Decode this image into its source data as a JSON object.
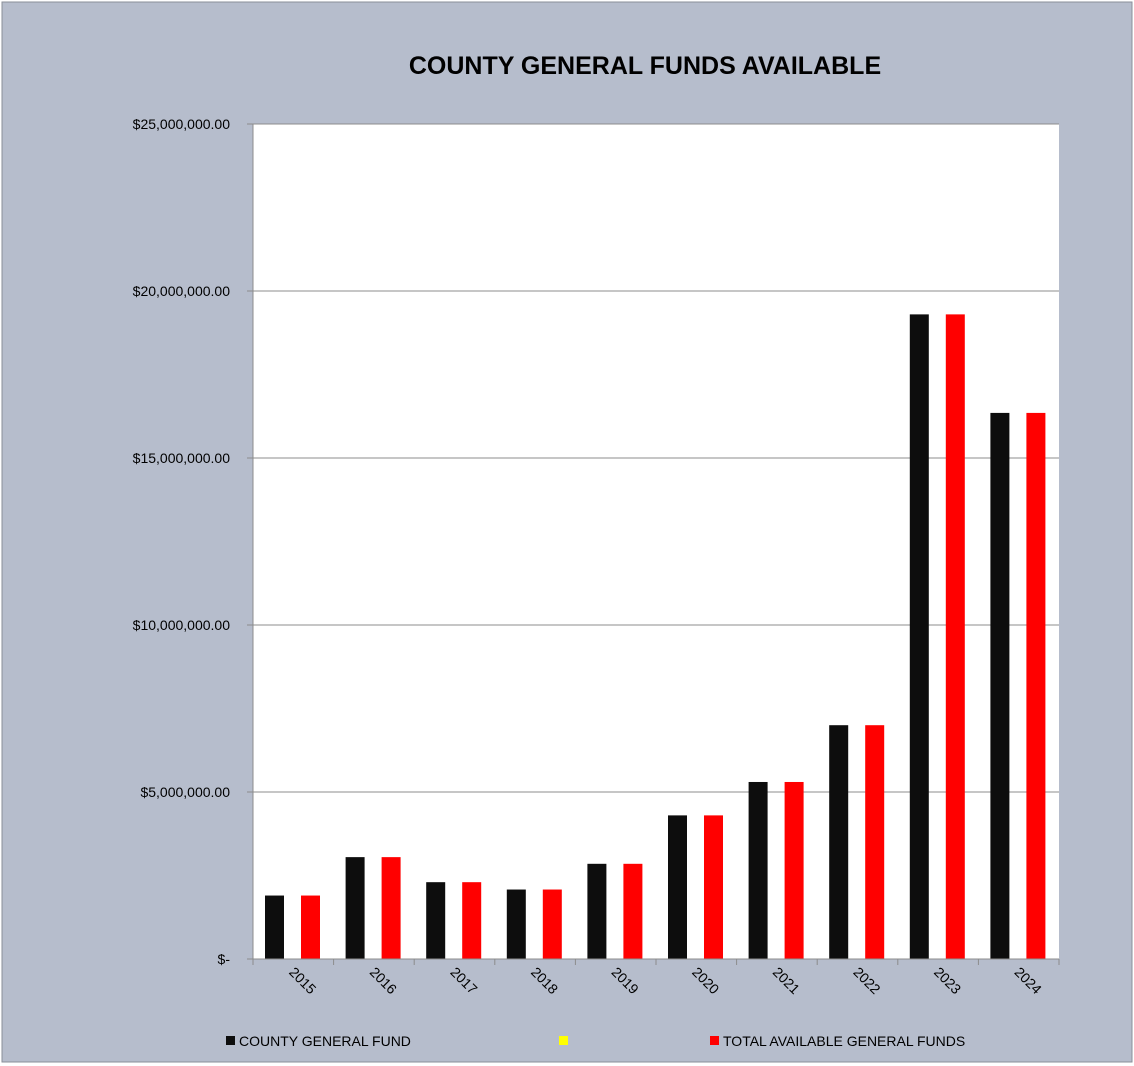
{
  "chart_data": {
    "type": "bar",
    "title": "COUNTY GENERAL FUNDS AVAILABLE",
    "xlabel": "",
    "ylabel": "",
    "categories": [
      "2015",
      "2016",
      "2017",
      "2018",
      "2019",
      "2020",
      "2021",
      "2022",
      "2023",
      "2024"
    ],
    "series": [
      {
        "name": "COUNTY GENERAL FUND",
        "color": "#0d0d0d",
        "values": [
          1900000,
          3050000,
          2300000,
          2080000,
          2850000,
          4300000,
          5300000,
          7000000,
          19300000,
          16350000
        ]
      },
      {
        "name": "",
        "color": "#ffff00",
        "values": [
          0,
          0,
          0,
          0,
          0,
          0,
          0,
          0,
          0,
          0
        ]
      },
      {
        "name": "TOTAL AVAILABLE GENERAL FUNDS",
        "color": "#ff0000",
        "values": [
          1900000,
          3050000,
          2300000,
          2080000,
          2850000,
          4300000,
          5300000,
          7000000,
          19300000,
          16350000
        ]
      }
    ],
    "ylim": [
      0,
      25000000
    ],
    "y_ticks": [
      0,
      5000000,
      10000000,
      15000000,
      20000000,
      25000000
    ],
    "y_tick_labels": [
      "$-",
      "$5,000,000.00",
      "$10,000,000.00",
      "$15,000,000.00",
      "$20,000,000.00",
      "$25,000,000.00"
    ],
    "grid": true,
    "legend_position": "bottom",
    "background_color": "#b6bdcc",
    "plot_background_color": "#ffffff"
  }
}
